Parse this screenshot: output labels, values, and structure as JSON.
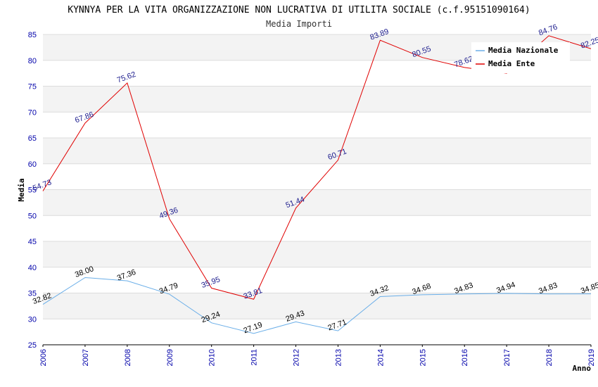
{
  "chart_data": {
    "type": "line",
    "title": "KYNNYA PER LA VITA ORGANIZZAZIONE NON LUCRATIVA DI UTILITA SOCIALE (c.f.95151090164)",
    "subtitle": "Media Importi",
    "xlabel": "Anno",
    "ylabel": "Media",
    "ylim": [
      25,
      85
    ],
    "y_ticks": [
      25,
      30,
      35,
      40,
      45,
      50,
      55,
      60,
      65,
      70,
      75,
      80,
      85
    ],
    "categories": [
      "2006",
      "2007",
      "2008",
      "2009",
      "2010",
      "2011",
      "2012",
      "2013",
      "2014",
      "2015",
      "2016",
      "2017",
      "2018",
      "2019"
    ],
    "grid": true,
    "legend_position": "top-right",
    "series": [
      {
        "name": "Media Nazionale",
        "color": "#6aaee8",
        "label_color": "#000000",
        "values": [
          32.82,
          38.0,
          37.36,
          34.79,
          29.24,
          27.19,
          29.43,
          27.71,
          34.32,
          34.68,
          34.83,
          34.94,
          34.83,
          34.85
        ],
        "labels": [
          "32.82",
          "38.00",
          "37.36",
          "34.79",
          "29.24",
          "27.19",
          "29.43",
          "27.71",
          "34.32",
          "34.68",
          "34.83",
          "34.94",
          "34.83",
          "34.85"
        ]
      },
      {
        "name": "Media Ente",
        "color": "#e00000",
        "label_color": "#1a1a8c",
        "values": [
          54.73,
          67.86,
          75.62,
          49.36,
          35.95,
          33.81,
          51.44,
          60.71,
          83.89,
          80.55,
          78.62,
          77.5,
          84.76,
          82.25
        ],
        "labels": [
          "54.73",
          "67.86",
          "75.62",
          "49.36",
          "35.95",
          "33.81",
          "51.44",
          "60.71",
          "83.89",
          "80.55",
          "78.62",
          "",
          "84.76",
          "82.25"
        ]
      }
    ]
  }
}
